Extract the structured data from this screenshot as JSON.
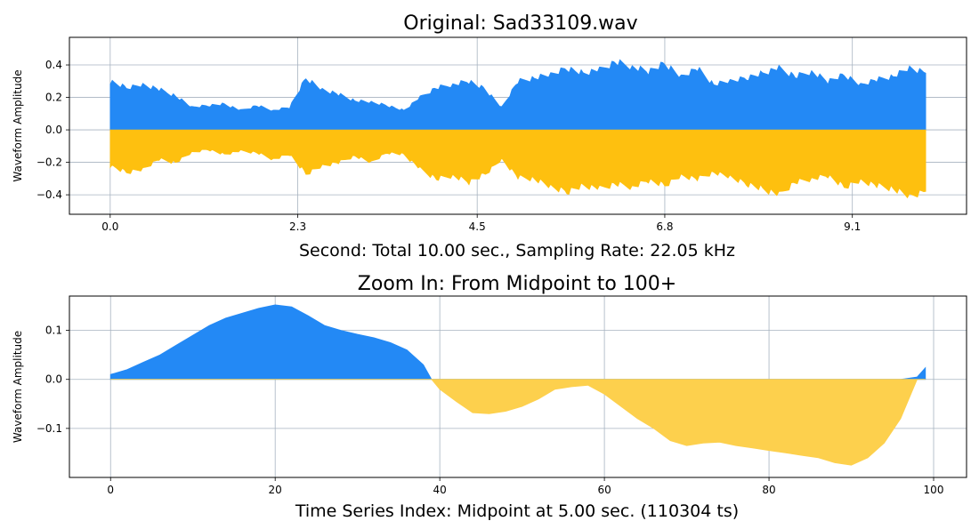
{
  "colors": {
    "positive": "#2389f5",
    "negative": "#fec00f",
    "negative_zoom": "#fdd04d",
    "grid": "#a7b3c0"
  },
  "chart_data": [
    {
      "type": "area",
      "title": "Original: Sad33109.wav",
      "xlabel": "Second: Total 10.00 sec., Sampling Rate: 22.05 kHz",
      "ylabel": "Waveform Amplitude",
      "xlim": [
        -0.5,
        10.5
      ],
      "ylim": [
        -0.52,
        0.57
      ],
      "xticks": [
        0.0,
        2.3,
        4.5,
        6.8,
        9.1
      ],
      "xtick_labels": [
        "0.0",
        "2.3",
        "4.5",
        "6.8",
        "9.1"
      ],
      "yticks": [
        -0.4,
        -0.2,
        0.0,
        0.2,
        0.4
      ],
      "ytick_labels": [
        "−0.4",
        "−0.2",
        "0.0",
        "0.2",
        "0.4"
      ],
      "grid": true,
      "series": [
        {
          "x": [
            0.0,
            0.2,
            0.4,
            0.6,
            0.8,
            1.0,
            1.2,
            1.4,
            1.6,
            1.8,
            2.0,
            2.2,
            2.4,
            2.6,
            2.8,
            3.0,
            3.2,
            3.4,
            3.6,
            3.8,
            4.0,
            4.2,
            4.4,
            4.6,
            4.8,
            5.0,
            5.2,
            5.4,
            5.6,
            5.8,
            6.0,
            6.2,
            6.4,
            6.6,
            6.8,
            7.0,
            7.2,
            7.4,
            7.6,
            7.8,
            8.0,
            8.2,
            8.4,
            8.6,
            8.8,
            9.0,
            9.2,
            9.4,
            9.6,
            9.8,
            10.0
          ],
          "upper": [
            0.3,
            0.26,
            0.28,
            0.25,
            0.21,
            0.14,
            0.15,
            0.16,
            0.12,
            0.15,
            0.12,
            0.14,
            0.32,
            0.25,
            0.22,
            0.18,
            0.17,
            0.15,
            0.12,
            0.2,
            0.26,
            0.28,
            0.3,
            0.25,
            0.14,
            0.3,
            0.32,
            0.34,
            0.38,
            0.35,
            0.37,
            0.42,
            0.39,
            0.36,
            0.41,
            0.33,
            0.38,
            0.28,
            0.3,
            0.32,
            0.35,
            0.38,
            0.33,
            0.36,
            0.3,
            0.34,
            0.28,
            0.31,
            0.33,
            0.38,
            0.35
          ],
          "lower": [
            -0.22,
            -0.26,
            -0.24,
            -0.18,
            -0.2,
            -0.14,
            -0.12,
            -0.15,
            -0.13,
            -0.14,
            -0.18,
            -0.15,
            -0.27,
            -0.22,
            -0.2,
            -0.16,
            -0.2,
            -0.14,
            -0.15,
            -0.24,
            -0.3,
            -0.28,
            -0.32,
            -0.27,
            -0.18,
            -0.29,
            -0.3,
            -0.35,
            -0.38,
            -0.34,
            -0.36,
            -0.33,
            -0.35,
            -0.31,
            -0.34,
            -0.28,
            -0.3,
            -0.26,
            -0.29,
            -0.33,
            -0.36,
            -0.4,
            -0.32,
            -0.3,
            -0.28,
            -0.35,
            -0.31,
            -0.34,
            -0.36,
            -0.41,
            -0.38
          ]
        }
      ]
    },
    {
      "type": "area",
      "title": "Zoom In: From Midpoint to 100+",
      "xlabel": "Time Series Index: Midpoint at 5.00 sec. (110304 ts)",
      "ylabel": "Waveform Amplitude",
      "xlim": [
        -5,
        104
      ],
      "ylim": [
        -0.2,
        0.17
      ],
      "xticks": [
        0,
        20,
        40,
        60,
        80,
        100
      ],
      "xtick_labels": [
        "0",
        "20",
        "40",
        "60",
        "80",
        "100"
      ],
      "yticks": [
        -0.1,
        0.0,
        0.1
      ],
      "ytick_labels": [
        "−0.1",
        "0.0",
        "0.1"
      ],
      "grid": true,
      "series": [
        {
          "x": [
            0,
            2,
            4,
            6,
            8,
            10,
            12,
            14,
            16,
            18,
            20,
            22,
            24,
            26,
            28,
            30,
            32,
            34,
            36,
            38,
            39,
            40,
            42,
            44,
            46,
            48,
            50,
            52,
            54,
            56,
            58,
            60,
            62,
            64,
            66,
            68,
            70,
            72,
            74,
            76,
            78,
            80,
            82,
            84,
            86,
            88,
            90,
            92,
            94,
            96,
            98,
            99
          ],
          "y": [
            0.01,
            0.02,
            0.035,
            0.05,
            0.07,
            0.09,
            0.11,
            0.125,
            0.135,
            0.145,
            0.152,
            0.148,
            0.13,
            0.11,
            0.1,
            0.092,
            0.085,
            0.075,
            0.06,
            0.03,
            0.0,
            -0.02,
            -0.045,
            -0.068,
            -0.07,
            -0.065,
            -0.055,
            -0.04,
            -0.02,
            -0.015,
            -0.012,
            -0.03,
            -0.055,
            -0.08,
            -0.1,
            -0.125,
            -0.135,
            -0.13,
            -0.128,
            -0.135,
            -0.14,
            -0.145,
            -0.15,
            -0.155,
            -0.16,
            -0.17,
            -0.175,
            -0.16,
            -0.13,
            -0.08,
            0.005,
            0.024
          ]
        }
      ]
    }
  ]
}
